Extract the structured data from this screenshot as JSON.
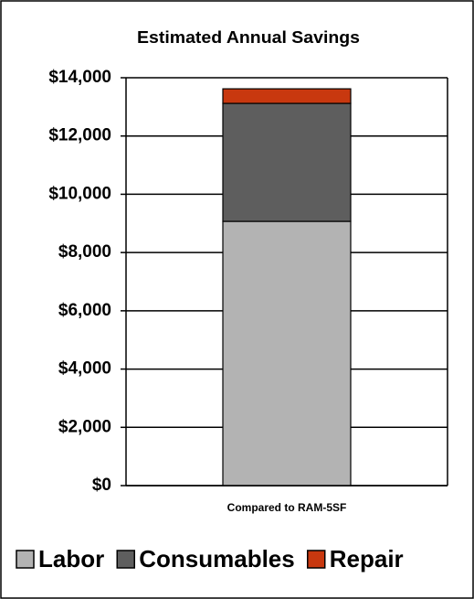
{
  "chart_data": {
    "type": "stacked_bar",
    "title": "Estimated Annual Savings",
    "categories": [
      "Compared to RAM-5SF"
    ],
    "series": [
      {
        "name": "Labor",
        "color": "#b3b3b3",
        "values": [
          9070
        ]
      },
      {
        "name": "Consumables",
        "color": "#5e5e5e",
        "values": [
          4050
        ]
      },
      {
        "name": "Repair",
        "color": "#c8380f",
        "values": [
          500
        ]
      }
    ],
    "ylim": [
      0,
      14000
    ],
    "yticks": [
      {
        "value": 0,
        "label": "$0"
      },
      {
        "value": 2000,
        "label": "$2,000"
      },
      {
        "value": 4000,
        "label": "$4,000"
      },
      {
        "value": 6000,
        "label": "$6,000"
      },
      {
        "value": 8000,
        "label": "$8,000"
      },
      {
        "value": 10000,
        "label": "$10,000"
      },
      {
        "value": 12000,
        "label": "$12,000"
      },
      {
        "value": 14000,
        "label": "$14,000"
      }
    ],
    "grid": true,
    "legend": "bottom"
  }
}
